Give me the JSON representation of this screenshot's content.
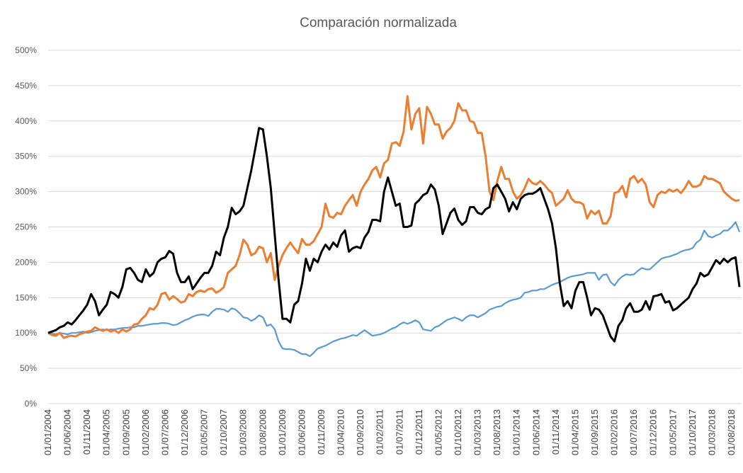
{
  "chart_data": {
    "type": "line",
    "title": "Comparación normalizada",
    "categories": [
      "01/01/2004",
      null,
      null,
      null,
      null,
      "01/06/2004",
      null,
      null,
      null,
      null,
      "01/11/2004",
      null,
      null,
      null,
      null,
      "01/04/2005",
      null,
      null,
      null,
      null,
      "01/09/2005",
      null,
      null,
      null,
      null,
      "01/02/2006",
      null,
      null,
      null,
      null,
      "01/07/2006",
      null,
      null,
      null,
      null,
      "01/12/2006",
      null,
      null,
      null,
      null,
      "01/05/2007",
      null,
      null,
      null,
      null,
      "01/10/2007",
      null,
      null,
      null,
      null,
      "01/03/2008",
      null,
      null,
      null,
      null,
      "01/08/2008",
      null,
      null,
      null,
      null,
      "01/01/2009",
      null,
      null,
      null,
      null,
      "01/06/2009",
      null,
      null,
      null,
      null,
      "01/11/2009",
      null,
      null,
      null,
      null,
      "01/04/2010",
      null,
      null,
      null,
      null,
      "01/09/2010",
      null,
      null,
      null,
      null,
      "01/02/2011",
      null,
      null,
      null,
      null,
      "01/07/2011",
      null,
      null,
      null,
      null,
      "01/12/2011",
      null,
      null,
      null,
      null,
      "01/05/2012",
      null,
      null,
      null,
      null,
      "01/10/2012",
      null,
      null,
      null,
      null,
      "01/03/2013",
      null,
      null,
      null,
      null,
      "01/08/2013",
      null,
      null,
      null,
      null,
      "01/01/2014",
      null,
      null,
      null,
      null,
      "01/06/2014",
      null,
      null,
      null,
      null,
      "01/11/2014",
      null,
      null,
      null,
      null,
      "01/04/2015",
      null,
      null,
      null,
      null,
      "01/09/2015",
      null,
      null,
      null,
      null,
      "01/02/2016",
      null,
      null,
      null,
      null,
      "01/07/2016",
      null,
      null,
      null,
      null,
      "01/12/2016",
      null,
      null,
      null,
      null,
      "01/05/2017",
      null,
      null,
      null,
      null,
      "01/10/2017",
      null,
      null,
      null,
      null,
      "01/03/2018",
      null,
      null,
      null,
      null,
      "01/08/2018",
      null,
      null
    ],
    "series": [
      {
        "color": "#5b9bd5",
        "values": [
          100,
          99,
          98,
          100,
          99,
          98,
          100,
          100,
          101,
          102,
          100,
          101,
          103,
          104,
          105,
          104,
          105,
          105,
          106,
          107,
          107,
          108,
          108,
          110,
          110,
          111,
          112,
          113,
          113,
          114,
          114,
          113,
          111,
          112,
          115,
          118,
          120,
          123,
          125,
          126,
          126,
          124,
          130,
          134,
          134,
          133,
          130,
          135,
          133,
          128,
          122,
          121,
          117,
          120,
          125,
          122,
          110,
          112,
          105,
          88,
          78,
          77,
          77,
          76,
          73,
          70,
          70,
          67,
          72,
          78,
          80,
          82,
          85,
          88,
          90,
          92,
          93,
          95,
          97,
          96,
          100,
          104,
          100,
          96,
          97,
          98,
          100,
          103,
          106,
          108,
          112,
          115,
          113,
          115,
          118,
          115,
          105,
          104,
          103,
          108,
          110,
          114,
          118,
          120,
          122,
          120,
          117,
          122,
          125,
          125,
          122,
          125,
          128,
          133,
          135,
          137,
          138,
          142,
          145,
          147,
          148,
          150,
          157,
          158,
          160,
          160,
          162,
          162,
          165,
          168,
          170,
          172,
          175,
          178,
          180,
          181,
          182,
          183,
          185,
          185,
          185,
          175,
          182,
          183,
          172,
          167,
          175,
          180,
          183,
          182,
          183,
          188,
          192,
          190,
          190,
          195,
          200,
          205,
          207,
          208,
          210,
          212,
          215,
          217,
          218,
          220,
          228,
          232,
          245,
          237,
          235,
          238,
          240,
          245,
          245,
          250,
          257,
          243
        ]
      },
      {
        "color": "#ed7d31",
        "values": [
          100,
          97,
          96,
          100,
          93,
          95,
          96,
          95,
          98,
          100,
          102,
          103,
          108,
          105,
          103,
          105,
          102,
          104,
          100,
          105,
          102,
          105,
          112,
          113,
          120,
          125,
          135,
          133,
          140,
          155,
          157,
          147,
          152,
          148,
          143,
          145,
          155,
          152,
          158,
          160,
          158,
          162,
          163,
          157,
          160,
          165,
          185,
          190,
          195,
          210,
          232,
          225,
          210,
          213,
          222,
          220,
          200,
          213,
          175,
          195,
          210,
          220,
          228,
          220,
          213,
          233,
          225,
          225,
          230,
          240,
          250,
          283,
          265,
          263,
          270,
          268,
          280,
          288,
          295,
          280,
          300,
          310,
          318,
          330,
          335,
          320,
          340,
          345,
          368,
          370,
          365,
          385,
          435,
          388,
          410,
          418,
          368,
          420,
          410,
          395,
          395,
          375,
          385,
          390,
          400,
          425,
          415,
          415,
          400,
          398,
          383,
          383,
          350,
          300,
          288,
          315,
          335,
          318,
          318,
          300,
          290,
          295,
          305,
          318,
          312,
          310,
          315,
          310,
          303,
          298,
          280,
          285,
          290,
          302,
          290,
          285,
          285,
          282,
          262,
          273,
          268,
          273,
          255,
          255,
          265,
          298,
          300,
          308,
          292,
          318,
          322,
          313,
          318,
          310,
          285,
          278,
          295,
          300,
          298,
          303,
          300,
          303,
          298,
          305,
          315,
          307,
          307,
          310,
          322,
          318,
          318,
          315,
          312,
          300,
          295,
          290,
          287,
          288
        ]
      },
      {
        "color": "#000000",
        "values": [
          100,
          102,
          104,
          108,
          110,
          115,
          112,
          118,
          125,
          132,
          140,
          155,
          145,
          125,
          133,
          140,
          158,
          155,
          150,
          165,
          190,
          192,
          185,
          175,
          172,
          190,
          180,
          185,
          200,
          205,
          207,
          216,
          212,
          185,
          172,
          172,
          180,
          162,
          170,
          178,
          185,
          185,
          195,
          215,
          210,
          235,
          250,
          277,
          268,
          272,
          280,
          305,
          330,
          360,
          390,
          388,
          350,
          305,
          240,
          175,
          120,
          120,
          115,
          140,
          145,
          170,
          205,
          188,
          205,
          200,
          215,
          225,
          218,
          228,
          222,
          238,
          245,
          215,
          220,
          222,
          220,
          235,
          243,
          260,
          260,
          258,
          300,
          320,
          300,
          280,
          283,
          250,
          250,
          252,
          283,
          288,
          295,
          298,
          310,
          303,
          280,
          240,
          255,
          270,
          276,
          260,
          253,
          258,
          278,
          278,
          270,
          268,
          275,
          278,
          305,
          310,
          300,
          290,
          272,
          285,
          275,
          290,
          295,
          297,
          297,
          300,
          305,
          290,
          275,
          255,
          220,
          170,
          138,
          145,
          135,
          160,
          172,
          172,
          150,
          125,
          135,
          133,
          125,
          110,
          95,
          88,
          110,
          118,
          135,
          142,
          130,
          130,
          133,
          145,
          133,
          152,
          153,
          155,
          143,
          145,
          132,
          135,
          140,
          145,
          150,
          162,
          170,
          185,
          180,
          183,
          193,
          203,
          198,
          205,
          200,
          205,
          207,
          165
        ]
      }
    ],
    "ylim": [
      0,
      500
    ],
    "yticks": [
      {
        "value": 0,
        "label": "0%"
      },
      {
        "value": 50,
        "label": "50%"
      },
      {
        "value": 100,
        "label": "100%"
      },
      {
        "value": 150,
        "label": "150%"
      },
      {
        "value": 200,
        "label": "200%"
      },
      {
        "value": 250,
        "label": "250%"
      },
      {
        "value": 300,
        "label": "300%"
      },
      {
        "value": 350,
        "label": "350%"
      },
      {
        "value": 400,
        "label": "400%"
      },
      {
        "value": 450,
        "label": "450%"
      },
      {
        "value": 500,
        "label": "500%"
      }
    ],
    "grid": true
  }
}
